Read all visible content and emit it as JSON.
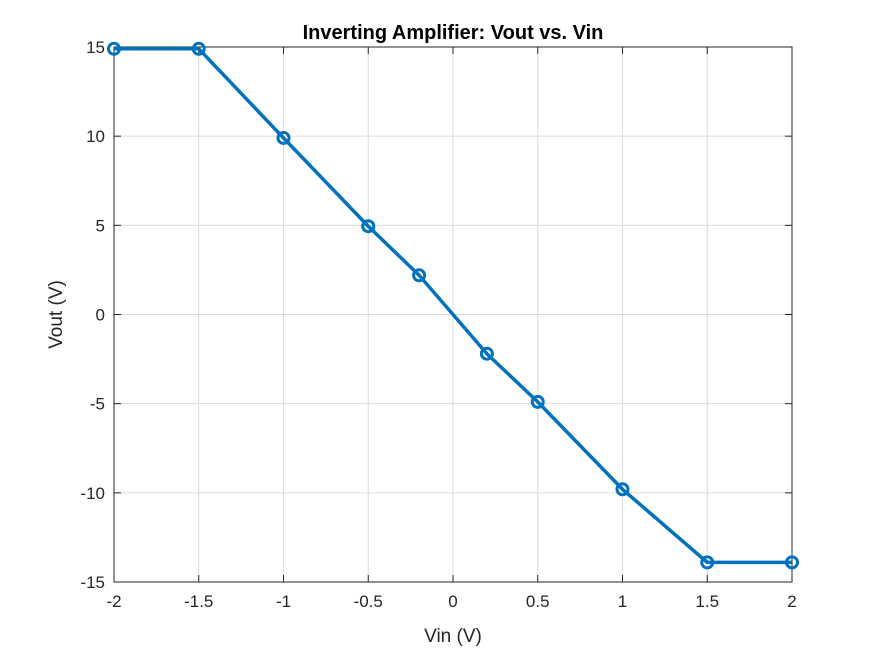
{
  "chart_data": {
    "type": "line",
    "title": "Inverting Amplifier: Vout vs. Vin",
    "xlabel": "Vin (V)",
    "ylabel": "Vout (V)",
    "xlim": [
      -2,
      2
    ],
    "ylim": [
      -15,
      15
    ],
    "xticks": [
      -2,
      -1.5,
      -1,
      -0.5,
      0,
      0.5,
      1,
      1.5,
      2
    ],
    "xtick_labels": [
      "-2",
      "-1.5",
      "-1",
      "-0.5",
      "0",
      "0.5",
      "1",
      "1.5",
      "2"
    ],
    "yticks": [
      -15,
      -10,
      -5,
      0,
      5,
      10,
      15
    ],
    "ytick_labels": [
      "-15",
      "-10",
      "-5",
      "0",
      "5",
      "10",
      "15"
    ],
    "grid": true,
    "series": [
      {
        "name": "Vout",
        "color": "#0072BD",
        "marker": "circle",
        "x": [
          -2,
          -1.5,
          -1,
          -0.5,
          -0.2,
          0.2,
          0.5,
          1,
          1.5,
          2
        ],
        "y": [
          14.9,
          14.9,
          9.9,
          4.95,
          2.2,
          -2.2,
          -4.9,
          -9.8,
          -13.9,
          -13.9
        ]
      }
    ]
  }
}
